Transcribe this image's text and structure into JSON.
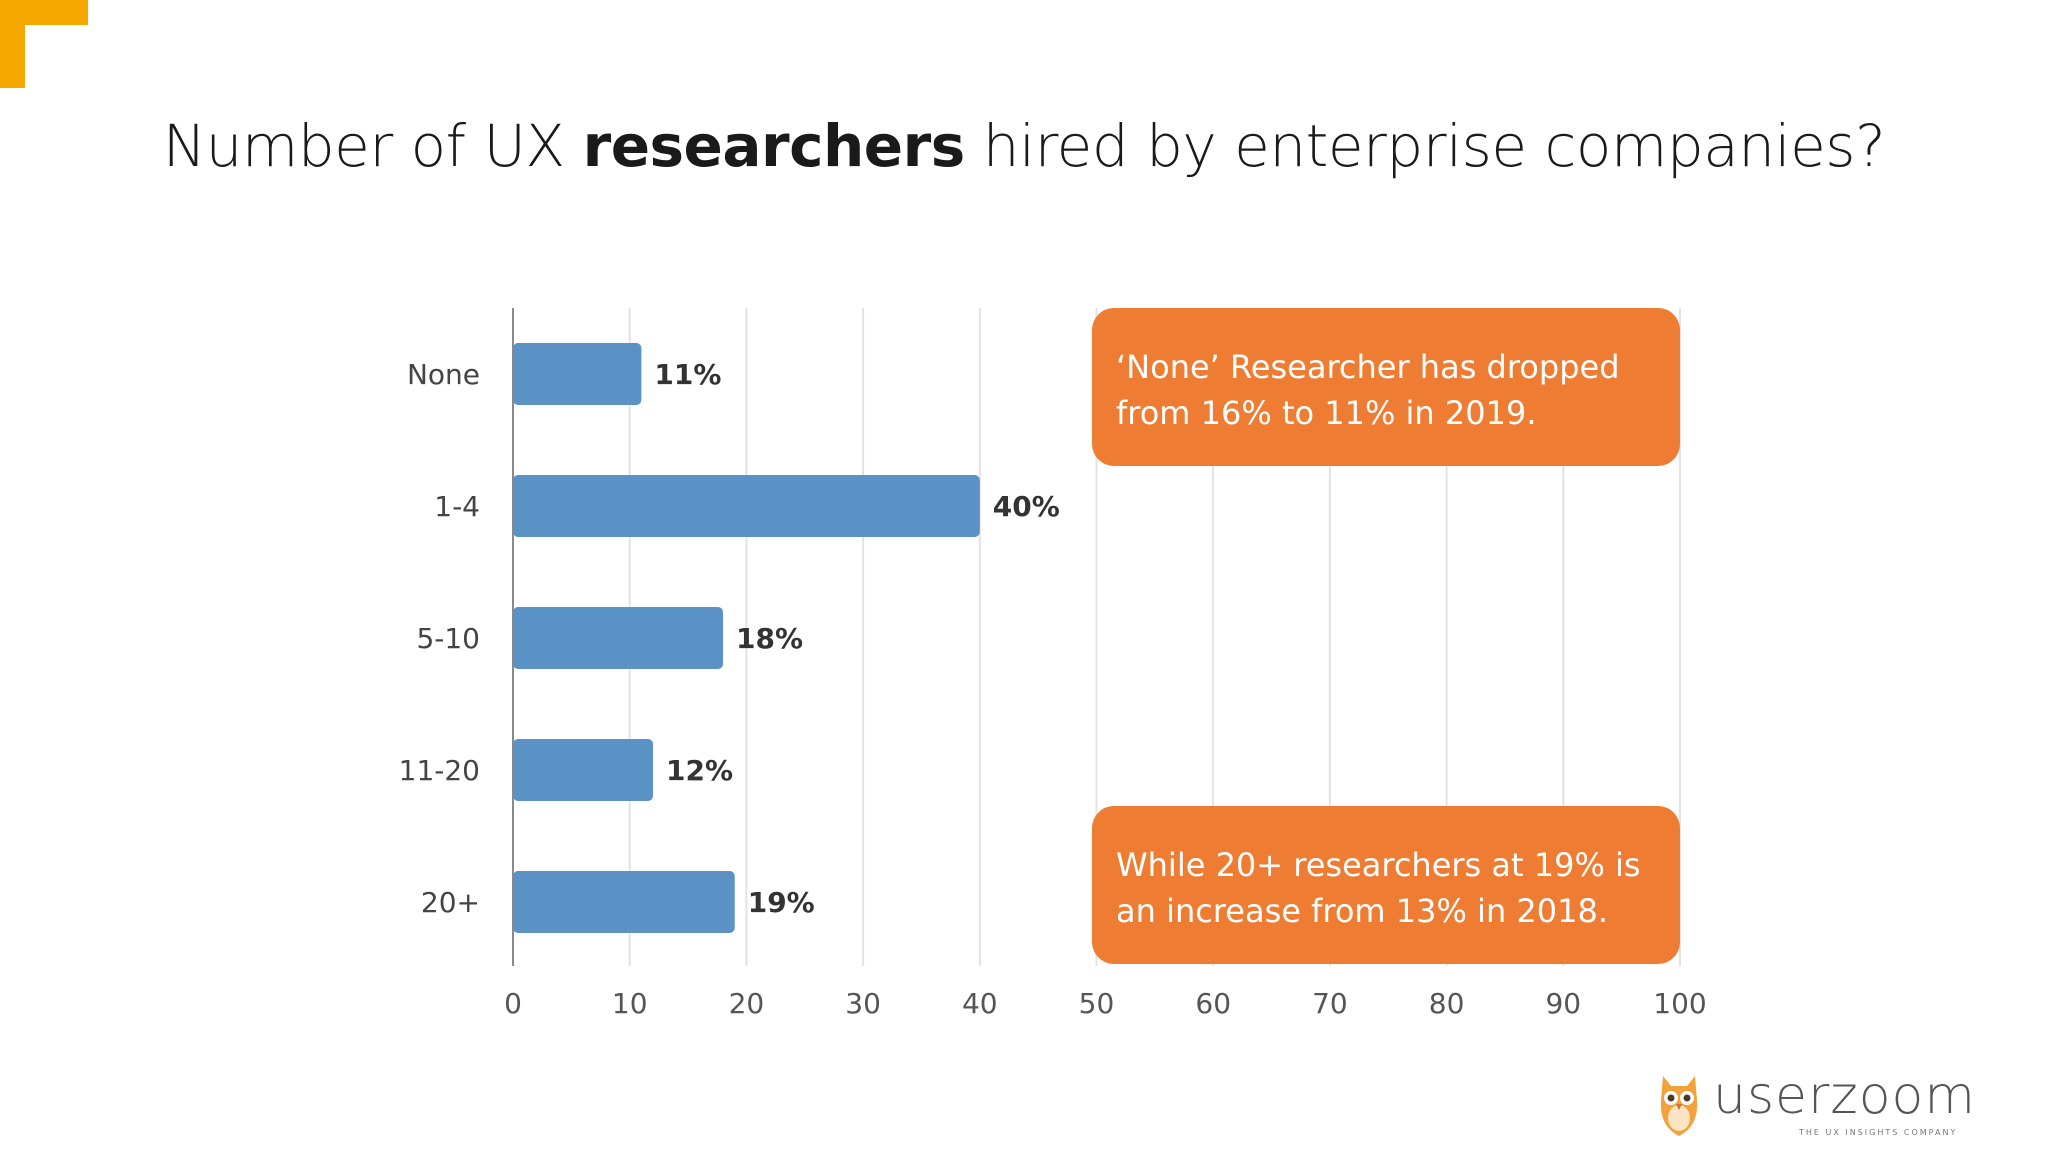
{
  "slide": {
    "title_pre": "Number of UX ",
    "title_bold": "researchers",
    "title_post": " hired by enterprise companies?"
  },
  "colors": {
    "bar": "#5B92C6",
    "callout": "#EE7D33",
    "accent": "#F5A800",
    "grid": "#E3E3E3"
  },
  "chart_data": {
    "type": "bar",
    "orientation": "horizontal",
    "categories": [
      "None",
      "1-4",
      "5-10",
      "11-20",
      "20+"
    ],
    "values": [
      11,
      40,
      18,
      12,
      19
    ],
    "data_labels": [
      "11%",
      "40%",
      "18%",
      "12%",
      "19%"
    ],
    "xlim": [
      0,
      100
    ],
    "xticks": [
      0,
      10,
      20,
      30,
      40,
      50,
      60,
      70,
      80,
      90,
      100
    ],
    "grid": true,
    "title": "",
    "xlabel": "",
    "ylabel": ""
  },
  "callouts": [
    {
      "line1": "‘None’ Researcher has dropped",
      "line2": "from 16% to 11% in 2019."
    },
    {
      "line1": "While 20+ researchers at 19% is",
      "line2": "an increase from 13% in 2018."
    }
  ],
  "logo": {
    "wordmark": "userzoom",
    "tagline": "THE UX INSIGHTS COMPANY",
    "icon": "owl-icon"
  }
}
